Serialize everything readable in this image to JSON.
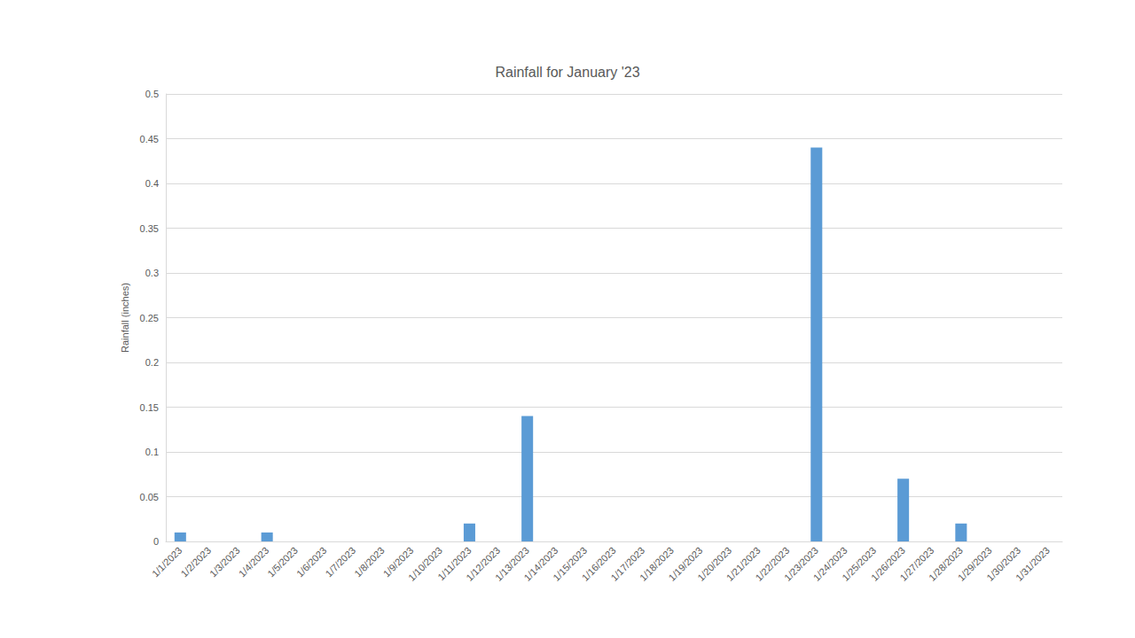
{
  "chart_data": {
    "type": "bar",
    "title": "Rainfall for January '23",
    "y_label": "Rainfall (inches)",
    "categories": [
      "1/1/2023",
      "1/2/2023",
      "1/3/2023",
      "1/4/2023",
      "1/5/2023",
      "1/6/2023",
      "1/7/2023",
      "1/8/2023",
      "1/9/2023",
      "1/10/2023",
      "1/11/2023",
      "1/12/2023",
      "1/13/2023",
      "1/14/2023",
      "1/15/2023",
      "1/16/2023",
      "1/17/2023",
      "1/18/2023",
      "1/19/2023",
      "1/20/2023",
      "1/21/2023",
      "1/22/2023",
      "1/23/2023",
      "1/24/2023",
      "1/25/2023",
      "1/26/2023",
      "1/27/2023",
      "1/28/2023",
      "1/29/2023",
      "1/30/2023",
      "1/31/2023"
    ],
    "values": [
      0.01,
      0,
      0,
      0.01,
      0,
      0,
      0,
      0,
      0,
      0,
      0.02,
      0,
      0.14,
      0,
      0,
      0,
      0,
      0,
      0,
      0,
      0,
      0,
      0.44,
      0,
      0,
      0.07,
      0,
      0.02,
      0,
      0,
      0
    ],
    "color": "#5b9bd5",
    "ylim": [
      0,
      0.5
    ],
    "yticks": [
      0,
      0.05,
      0.1,
      0.15,
      0.2,
      0.25,
      0.3,
      0.35,
      0.4,
      0.45,
      0.5
    ],
    "grid": true
  }
}
